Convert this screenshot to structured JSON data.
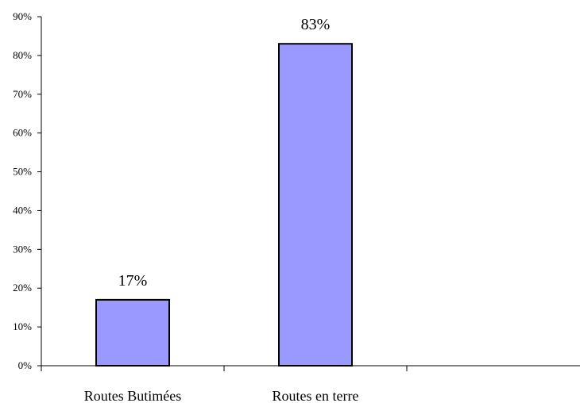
{
  "chart_data": {
    "type": "bar",
    "categories": [
      "Routes Butimées",
      "Routes en terre",
      ""
    ],
    "values": [
      17,
      83,
      null
    ],
    "data_labels": [
      "17%",
      "83%",
      ""
    ],
    "ylim": [
      0,
      90
    ],
    "y_ticks": [
      0,
      10,
      20,
      30,
      40,
      50,
      60,
      70,
      80,
      90
    ],
    "y_tick_labels": [
      "0%",
      "10%",
      "20%",
      "30%",
      "40%",
      "50%",
      "60%",
      "70%",
      "80%",
      "90%"
    ],
    "bar_color": "#9999ff",
    "bar_edge_color": "#000000",
    "grid": false,
    "legend": "none"
  }
}
